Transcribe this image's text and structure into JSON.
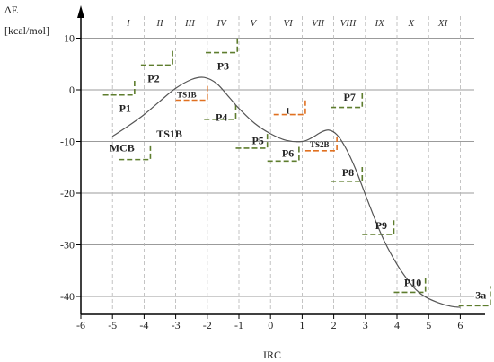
{
  "chart_data": {
    "type": "line",
    "ylabel_lines": [
      "ΔE",
      "[kcal/mol]"
    ],
    "xlabel": "IRC",
    "xlim": [
      -6,
      6.6
    ],
    "ylim": [
      -43.5,
      16
    ],
    "x_ticks": [
      -6,
      -5,
      -4,
      -3,
      -2,
      -1,
      0,
      1,
      2,
      3,
      4,
      5,
      6
    ],
    "y_ticks": [
      10,
      0,
      -10,
      -20,
      -30,
      -40
    ],
    "grid": "horizontal",
    "regions": [
      {
        "label": "I",
        "center": -4.5
      },
      {
        "label": "II",
        "center": -3.5
      },
      {
        "label": "III",
        "center": -2.55
      },
      {
        "label": "IV",
        "center": -1.55
      },
      {
        "label": "V",
        "center": -0.55
      },
      {
        "label": "VI",
        "center": 0.55
      },
      {
        "label": "VII",
        "center": 1.5
      },
      {
        "label": "VIII",
        "center": 2.45
      },
      {
        "label": "IX",
        "center": 3.45
      },
      {
        "label": "X",
        "center": 4.45
      },
      {
        "label": "XI",
        "center": 5.45
      }
    ],
    "region_boundaries": [
      -5,
      -4,
      -3,
      -2,
      -1,
      0,
      1,
      2,
      3,
      4,
      5,
      6
    ],
    "curve": {
      "x": [
        -5,
        -4.5,
        -4,
        -3.5,
        -3,
        -2.5,
        -2.1,
        -1.7,
        -1.3,
        -1,
        -0.5,
        0,
        0.5,
        1,
        1.3,
        1.6,
        1.85,
        2.1,
        2.4,
        2.7,
        3,
        3.3,
        3.6,
        4,
        4.3,
        4.6,
        4.9,
        5.3,
        5.7,
        6
      ],
      "y": [
        -9,
        -7,
        -4.8,
        -2.2,
        0.3,
        2,
        2.4,
        1.2,
        -1.5,
        -3.6,
        -6.5,
        -8.5,
        -9.8,
        -10,
        -9.3,
        -8.2,
        -7.8,
        -8.7,
        -11.5,
        -15.5,
        -20.3,
        -25,
        -29.3,
        -33.8,
        -36.5,
        -38.7,
        -40.1,
        -41.2,
        -41.9,
        -42.1
      ]
    },
    "states": [
      {
        "label": "MCB",
        "color": "#5e7d2e",
        "x": -4.8,
        "y": -13.5,
        "lx": -4.7,
        "ly": -11.2
      },
      {
        "label": "P1",
        "color": "#5e7d2e",
        "x": -5.3,
        "y": -1,
        "lx": -4.6,
        "ly": -3.6
      },
      {
        "label": "P2",
        "color": "#5e7d2e",
        "x": -4.1,
        "y": 4.8,
        "lx": -3.7,
        "ly": 2.2
      },
      {
        "label": "TS1B",
        "color": "#e07020",
        "x": -3,
        "y": -2,
        "lx": -2.65,
        "ly": -0.8
      },
      {
        "label": "TS1B",
        "color": "#333333",
        "x": null,
        "y": null,
        "lx": -3.2,
        "ly": -8.5
      },
      {
        "label": "P3",
        "color": "#5e7d2e",
        "x": -2.05,
        "y": 7.2,
        "lx": -1.5,
        "ly": 4.6
      },
      {
        "label": "P4",
        "color": "#5e7d2e",
        "x": -2.1,
        "y": -5.7,
        "lx": -1.55,
        "ly": -5.3
      },
      {
        "label": "P5",
        "color": "#5e7d2e",
        "x": -1.1,
        "y": -11.3,
        "lx": -0.4,
        "ly": -9.8
      },
      {
        "label": "1",
        "color": "#e07020",
        "x": 0.1,
        "y": -4.8,
        "lx": 0.55,
        "ly": -3.9
      },
      {
        "label": "P6",
        "color": "#5e7d2e",
        "x": -0.1,
        "y": -13.8,
        "lx": 0.55,
        "ly": -12.3
      },
      {
        "label": "TS2B",
        "color": "#e07020",
        "x": 1.1,
        "y": -11.8,
        "lx": 1.55,
        "ly": -10.4
      },
      {
        "label": "P7",
        "color": "#5e7d2e",
        "x": 1.9,
        "y": -3.4,
        "lx": 2.5,
        "ly": -1.4
      },
      {
        "label": "P8",
        "color": "#5e7d2e",
        "x": 1.9,
        "y": -17.7,
        "lx": 2.45,
        "ly": -16
      },
      {
        "label": "P9",
        "color": "#5e7d2e",
        "x": 2.9,
        "y": -28,
        "lx": 3.5,
        "ly": -26.3
      },
      {
        "label": "P10",
        "color": "#5e7d2e",
        "x": 3.9,
        "y": -39.2,
        "lx": 4.5,
        "ly": -37.3
      },
      {
        "label": "3a",
        "color": "#5e7d2e",
        "x": 5.95,
        "y": -41.8,
        "lx": 6.65,
        "ly": -39.7
      }
    ]
  }
}
